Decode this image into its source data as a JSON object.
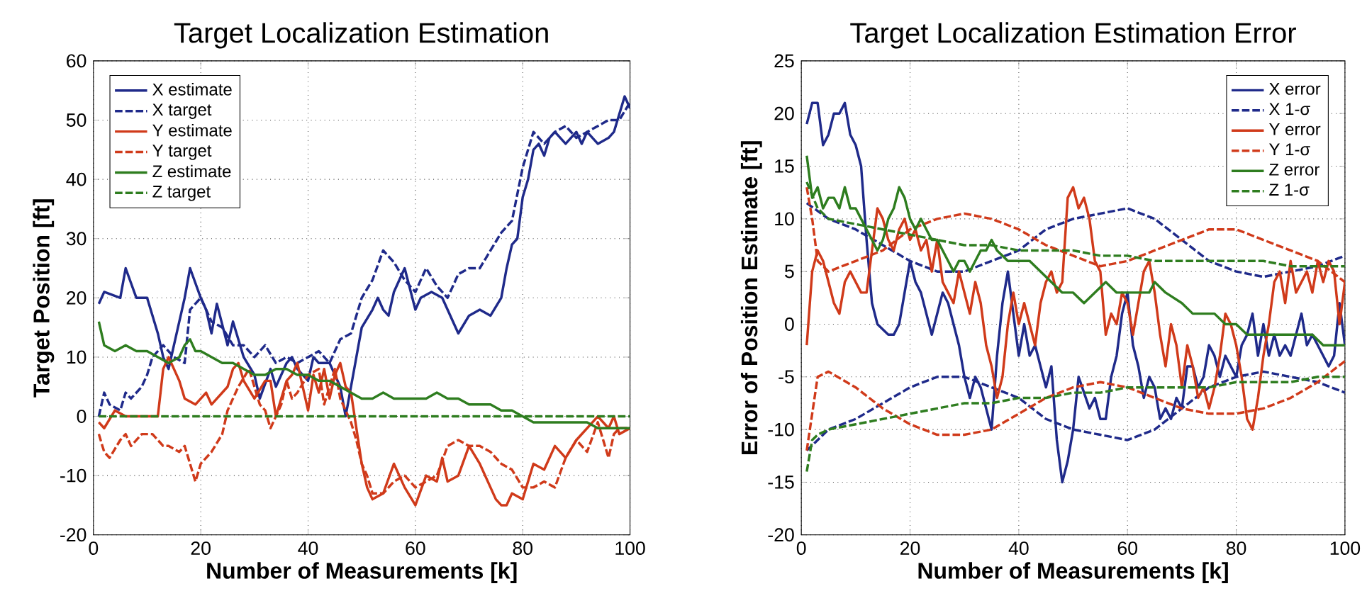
{
  "chart_data": [
    {
      "type": "line",
      "title": "Target Localization Estimation",
      "xlabel": "Number of Measurements [k]",
      "ylabel": "Target Position [ft]",
      "xlim": [
        0,
        100
      ],
      "ylim": [
        -20,
        60
      ],
      "xticks": [
        0,
        20,
        40,
        60,
        80,
        100
      ],
      "yticks": [
        -20,
        -10,
        0,
        10,
        20,
        30,
        40,
        50,
        60
      ],
      "grid": true,
      "legend": "top left",
      "marker": "none",
      "series": [
        {
          "name": "X estimate",
          "color": "#1f2a8a",
          "line_style": "solid",
          "x": [
            1,
            2,
            5,
            6,
            8,
            10,
            12,
            13,
            14,
            15,
            17,
            18,
            20,
            21,
            22,
            23,
            25,
            26,
            28,
            30,
            31,
            33,
            34,
            36,
            37,
            38,
            40,
            41,
            42,
            44,
            45,
            46,
            47,
            48,
            50,
            52,
            53,
            54,
            55,
            56,
            58,
            60,
            61,
            63,
            65,
            67,
            68,
            70,
            72,
            74,
            76,
            77,
            78,
            79,
            80,
            81,
            82,
            83,
            84,
            85,
            86,
            88,
            90,
            91,
            92,
            94,
            96,
            97,
            98,
            99,
            100
          ],
          "values": [
            19,
            21,
            20,
            25,
            20,
            20,
            14,
            10,
            8,
            12,
            20,
            25,
            20,
            18,
            14,
            19,
            12,
            16,
            10,
            7,
            3,
            8,
            5,
            9,
            10,
            8,
            6,
            10,
            9,
            9,
            7,
            5,
            0,
            5,
            15,
            18,
            20,
            18,
            17,
            21,
            25,
            18,
            20,
            21,
            20,
            16,
            14,
            17,
            18,
            17,
            20,
            25,
            29,
            30,
            37,
            40,
            45,
            46,
            44,
            47,
            48,
            46,
            48,
            46,
            48,
            46,
            47,
            48,
            51,
            54,
            52
          ]
        },
        {
          "name": "X target",
          "color": "#1f2a8a",
          "line_style": "dashed",
          "x": [
            1,
            2,
            3,
            5,
            6,
            7,
            9,
            10,
            11,
            13,
            15,
            17,
            18,
            20,
            22,
            24,
            26,
            28,
            30,
            32,
            34,
            36,
            38,
            40,
            42,
            44,
            46,
            48,
            50,
            52,
            54,
            56,
            58,
            60,
            62,
            64,
            66,
            68,
            70,
            72,
            74,
            76,
            78,
            80,
            82,
            84,
            86,
            88,
            90,
            92,
            94,
            96,
            98,
            100
          ],
          "values": [
            0,
            4,
            2,
            1,
            4,
            3,
            5,
            7,
            10,
            12,
            10,
            9,
            18,
            20,
            16,
            15,
            12,
            12,
            10,
            12,
            9,
            10,
            9,
            10,
            11,
            9,
            13,
            14,
            20,
            23,
            28,
            26,
            23,
            21,
            25,
            22,
            20,
            24,
            25,
            25,
            28,
            31,
            33,
            42,
            48,
            46,
            48,
            49,
            47,
            48,
            49,
            50,
            50,
            53
          ]
        },
        {
          "name": "Y estimate",
          "color": "#d03a1a",
          "line_style": "solid",
          "x": [
            1,
            2,
            4,
            6,
            8,
            10,
            12,
            13,
            14,
            16,
            17,
            19,
            20,
            21,
            22,
            24,
            25,
            26,
            27,
            28,
            30,
            32,
            33,
            34,
            36,
            37,
            38,
            39,
            40,
            41,
            42,
            43,
            44,
            45,
            46,
            47,
            48,
            49,
            50,
            51,
            52,
            54,
            56,
            58,
            60,
            62,
            64,
            65,
            66,
            68,
            70,
            72,
            74,
            75,
            76,
            77,
            78,
            80,
            82,
            84,
            86,
            88,
            90,
            92,
            94,
            96,
            97,
            98,
            100
          ],
          "values": [
            -1,
            -2,
            1,
            0,
            0,
            0,
            0,
            8,
            10,
            6,
            3,
            2,
            3,
            4,
            2,
            4,
            5,
            8,
            9,
            6,
            3,
            6,
            6,
            0,
            6,
            7,
            9,
            5,
            1,
            7,
            4,
            8,
            3,
            7,
            9,
            5,
            4,
            -2,
            -8,
            -12,
            -14,
            -13,
            -8,
            -12,
            -15,
            -10,
            -11,
            -7,
            -11,
            -10,
            -5,
            -8,
            -12,
            -14,
            -15,
            -15,
            -13,
            -14,
            -8,
            -9,
            -5,
            -7,
            -4,
            -2,
            0,
            -2,
            0,
            -3,
            -2
          ]
        },
        {
          "name": "Y target",
          "color": "#d03a1a",
          "line_style": "dashed",
          "x": [
            1,
            2,
            3,
            5,
            6,
            7,
            9,
            11,
            12,
            13,
            14,
            16,
            17,
            18,
            19,
            20,
            22,
            24,
            25,
            27,
            29,
            31,
            32,
            33,
            35,
            36,
            37,
            38,
            40,
            42,
            43,
            44,
            45,
            46,
            48,
            49,
            50,
            51,
            52,
            54,
            56,
            58,
            60,
            62,
            64,
            66,
            68,
            70,
            72,
            74,
            76,
            78,
            80,
            82,
            84,
            86,
            88,
            90,
            92,
            94,
            96,
            97,
            98,
            100
          ],
          "values": [
            -3,
            -6,
            -7,
            -4,
            -3,
            -5,
            -3,
            -3,
            -4,
            -5,
            -5,
            -6,
            -5,
            -8,
            -11,
            -8,
            -6,
            -3,
            1,
            5,
            8,
            2,
            1,
            -2,
            2,
            6,
            3,
            4,
            7,
            8,
            2,
            5,
            8,
            3,
            -1,
            -4,
            -8,
            -10,
            -13,
            -13,
            -11,
            -10,
            -12,
            -11,
            -10,
            -5,
            -4,
            -5,
            -5,
            -6,
            -8,
            -9,
            -12,
            -12,
            -11,
            -12,
            -7,
            -4,
            -6,
            -1,
            -7,
            -3,
            -2,
            -2
          ]
        },
        {
          "name": "Z estimate",
          "color": "#2e7d1f",
          "line_style": "solid",
          "x": [
            1,
            2,
            4,
            6,
            8,
            10,
            12,
            14,
            16,
            17,
            18,
            19,
            20,
            22,
            24,
            26,
            28,
            30,
            32,
            34,
            36,
            38,
            40,
            42,
            44,
            46,
            48,
            50,
            52,
            54,
            56,
            58,
            60,
            62,
            64,
            66,
            68,
            70,
            72,
            74,
            76,
            78,
            80,
            82,
            84,
            86,
            88,
            90,
            92,
            94,
            96,
            98,
            100
          ],
          "values": [
            16,
            12,
            11,
            12,
            11,
            11,
            10,
            9,
            10,
            12,
            13,
            11,
            11,
            10,
            9,
            9,
            8,
            7,
            7,
            8,
            8,
            7,
            7,
            6,
            6,
            5,
            4,
            3,
            3,
            4,
            3,
            3,
            3,
            3,
            4,
            3,
            3,
            2,
            2,
            2,
            1,
            1,
            0,
            -1,
            -1,
            -1,
            -1,
            -1,
            -1,
            -2,
            -2,
            -2,
            -2
          ]
        },
        {
          "name": "Z target",
          "color": "#2e7d1f",
          "line_style": "dashed",
          "x": [
            1,
            100
          ],
          "values": [
            0,
            0
          ]
        }
      ]
    },
    {
      "type": "line",
      "title": "Target Localization Estimation Error",
      "xlabel": "Number of Measurements [k]",
      "ylabel": "Error of Position Estimate [ft]",
      "xlim": [
        0,
        100
      ],
      "ylim": [
        -20,
        25
      ],
      "xticks": [
        0,
        20,
        40,
        60,
        80,
        100
      ],
      "yticks": [
        -20,
        -15,
        -10,
        -5,
        0,
        5,
        10,
        15,
        20,
        25
      ],
      "grid": true,
      "legend": "top right",
      "marker": "none",
      "series": [
        {
          "name": "X error",
          "color": "#1f2a8a",
          "line_style": "solid",
          "x": [
            1,
            2,
            3,
            4,
            5,
            6,
            7,
            8,
            9,
            10,
            11,
            12,
            13,
            14,
            16,
            17,
            18,
            19,
            20,
            21,
            22,
            23,
            24,
            25,
            26,
            27,
            28,
            29,
            30,
            31,
            32,
            33,
            34,
            35,
            36,
            37,
            38,
            39,
            40,
            41,
            42,
            43,
            44,
            45,
            46,
            47,
            48,
            49,
            50,
            51,
            53,
            54,
            55,
            56,
            57,
            58,
            59,
            60,
            61,
            62,
            63,
            64,
            65,
            66,
            67,
            68,
            69,
            70,
            71,
            72,
            73,
            74,
            75,
            76,
            77,
            78,
            79,
            80,
            81,
            82,
            83,
            84,
            85,
            86,
            87,
            88,
            89,
            90,
            91,
            92,
            93,
            94,
            95,
            96,
            97,
            98,
            99,
            100
          ],
          "values": [
            19,
            21,
            21,
            17,
            18,
            20,
            20,
            21,
            18,
            17,
            15,
            8,
            2,
            0,
            -1,
            -1,
            0,
            3,
            6,
            4,
            3,
            1,
            -1,
            1,
            3,
            2,
            0,
            -2,
            -5,
            -7,
            -5,
            -6,
            -8,
            -10,
            -3,
            2,
            5,
            1,
            -3,
            0,
            -3,
            -2,
            -4,
            -6,
            -4,
            -11,
            -15,
            -13,
            -10,
            -5,
            -8,
            -7,
            -9,
            -9,
            -5,
            -3,
            1,
            3,
            -2,
            -4,
            -7,
            -5,
            -6,
            -9,
            -8,
            -9,
            -7,
            -8,
            -4,
            -4,
            -6,
            -5,
            -2,
            -3,
            -5,
            -3,
            -4,
            -5,
            -2,
            -1,
            1,
            -3,
            0,
            -3,
            -1,
            -3,
            -2,
            -3,
            -1,
            1,
            -2,
            -1,
            -2,
            -3,
            -4,
            -3,
            2,
            -2
          ]
        },
        {
          "name": "X 1-σ",
          "color": "#1f2a8a",
          "line_style": "dashed",
          "x": [
            1,
            5,
            10,
            15,
            20,
            25,
            30,
            35,
            40,
            45,
            50,
            55,
            60,
            65,
            70,
            75,
            80,
            85,
            90,
            95,
            100
          ],
          "values": [
            11.5,
            10,
            9,
            7.5,
            6,
            5,
            5,
            6,
            7,
            9,
            10,
            10.5,
            11,
            10,
            8,
            6,
            5,
            4.5,
            5,
            5.5,
            6.5
          ]
        },
        {
          "color": "#1f2a8a",
          "line_style": "dashed",
          "x": [
            1,
            5,
            10,
            15,
            20,
            25,
            30,
            35,
            40,
            45,
            50,
            55,
            60,
            65,
            70,
            75,
            80,
            85,
            90,
            95,
            100
          ],
          "values": [
            -12,
            -10,
            -9,
            -7.5,
            -6,
            -5,
            -5,
            -6,
            -7,
            -9,
            -10,
            -10.5,
            -11,
            -10,
            -8,
            -6,
            -5,
            -4.5,
            -5,
            -5.5,
            -6.5
          ]
        },
        {
          "name": "Y error",
          "color": "#d03a1a",
          "line_style": "solid",
          "x": [
            1,
            2,
            3,
            4,
            5,
            6,
            7,
            8,
            9,
            10,
            11,
            12,
            13,
            14,
            15,
            16,
            17,
            18,
            19,
            20,
            21,
            22,
            23,
            24,
            25,
            26,
            27,
            28,
            29,
            30,
            31,
            32,
            33,
            34,
            35,
            36,
            37,
            38,
            39,
            40,
            41,
            42,
            43,
            44,
            45,
            46,
            47,
            48,
            49,
            50,
            51,
            52,
            53,
            54,
            55,
            56,
            57,
            58,
            59,
            60,
            61,
            62,
            63,
            64,
            65,
            66,
            67,
            68,
            69,
            70,
            71,
            72,
            73,
            74,
            75,
            76,
            77,
            78,
            79,
            80,
            81,
            82,
            83,
            84,
            85,
            86,
            87,
            88,
            89,
            90,
            91,
            92,
            93,
            94,
            95,
            96,
            97,
            98,
            99,
            100
          ],
          "values": [
            -2,
            5,
            7,
            6,
            4,
            2,
            1,
            4,
            5,
            4,
            3,
            3,
            7,
            11,
            10,
            8,
            7,
            9,
            10,
            8,
            9,
            7,
            8,
            5,
            8,
            4,
            3,
            2,
            5,
            3,
            1,
            4,
            2,
            -2,
            -4,
            -7,
            -5,
            0,
            3,
            0,
            2,
            0,
            -2,
            2,
            4,
            5,
            3,
            4,
            12,
            13,
            11,
            12,
            10,
            6,
            5,
            -1,
            1,
            0,
            3,
            2,
            -1,
            2,
            5,
            6,
            3,
            -1,
            -4,
            0,
            -2,
            -6,
            -2,
            -4,
            -7,
            -6,
            -8,
            -6,
            -3,
            1,
            0,
            -2,
            -5,
            -9,
            -10,
            -7,
            -3,
            0,
            4,
            5,
            2,
            6,
            3,
            4,
            5,
            3,
            6,
            4,
            6,
            5,
            0,
            4
          ]
        },
        {
          "name": "Y 1-σ",
          "color": "#d03a1a",
          "line_style": "dashed",
          "x": [
            1,
            2,
            3,
            5,
            10,
            15,
            20,
            25,
            30,
            35,
            40,
            45,
            50,
            55,
            60,
            65,
            70,
            75,
            80,
            85,
            90,
            95,
            100
          ],
          "values": [
            13,
            10,
            6,
            5,
            6,
            7,
            9,
            10,
            10.5,
            10,
            9,
            7.5,
            6.5,
            5.5,
            6,
            7,
            8,
            9,
            9,
            8,
            7,
            6,
            4
          ]
        },
        {
          "color": "#d03a1a",
          "line_style": "dashed",
          "x": [
            1,
            3,
            5,
            10,
            15,
            20,
            25,
            30,
            35,
            40,
            45,
            50,
            55,
            60,
            65,
            70,
            75,
            80,
            85,
            90,
            95,
            100
          ],
          "values": [
            -12,
            -5,
            -4.5,
            -6,
            -8,
            -9.5,
            -10.5,
            -10.5,
            -10,
            -8.5,
            -7,
            -6,
            -5.5,
            -6,
            -7,
            -8,
            -8.5,
            -8.5,
            -8,
            -7,
            -5.5,
            -3.5
          ]
        },
        {
          "name": "Z error",
          "color": "#2e7d1f",
          "line_style": "solid",
          "x": [
            1,
            2,
            3,
            4,
            5,
            6,
            7,
            8,
            9,
            10,
            11,
            12,
            13,
            14,
            15,
            16,
            17,
            18,
            19,
            20,
            21,
            22,
            23,
            24,
            25,
            26,
            27,
            28,
            29,
            30,
            31,
            32,
            33,
            34,
            35,
            36,
            38,
            40,
            42,
            44,
            46,
            48,
            50,
            52,
            54,
            56,
            58,
            60,
            62,
            64,
            65,
            67,
            70,
            72,
            74,
            76,
            78,
            80,
            82,
            84,
            86,
            88,
            90,
            92,
            94,
            96,
            98,
            100
          ],
          "values": [
            16,
            12,
            13,
            11,
            12,
            12,
            11,
            13,
            11,
            11,
            10,
            9,
            8,
            7,
            8,
            10,
            11,
            13,
            12,
            10,
            9,
            10,
            9,
            8,
            8,
            7,
            6,
            5,
            6,
            6,
            5,
            6,
            7,
            7,
            8,
            7,
            6,
            6,
            6,
            5,
            4,
            3,
            3,
            2,
            3,
            4,
            3,
            3,
            3,
            3,
            4,
            3,
            2,
            1,
            1,
            1,
            0,
            0,
            -1,
            -1,
            -1,
            -1,
            -1,
            -1,
            -1,
            -2,
            -2,
            -2
          ]
        },
        {
          "name": "Z 1-σ",
          "color": "#2e7d1f",
          "line_style": "dashed",
          "x": [
            1,
            3,
            5,
            10,
            15,
            20,
            25,
            30,
            35,
            40,
            45,
            50,
            55,
            60,
            65,
            70,
            75,
            80,
            85,
            90,
            95,
            100
          ],
          "values": [
            13.5,
            11,
            10,
            9.5,
            9,
            8.5,
            8,
            7.5,
            7.5,
            7,
            7,
            7,
            6.5,
            6.5,
            6,
            6,
            6,
            6,
            6,
            5.5,
            5.5,
            5.5
          ]
        },
        {
          "color": "#2e7d1f",
          "line_style": "dashed",
          "x": [
            1,
            2,
            3,
            5,
            10,
            15,
            20,
            25,
            30,
            35,
            40,
            45,
            50,
            55,
            60,
            65,
            70,
            75,
            80,
            85,
            90,
            95,
            100
          ],
          "values": [
            -14,
            -11,
            -10.5,
            -10,
            -9.5,
            -9,
            -8.5,
            -8,
            -7.5,
            -7.5,
            -7,
            -7,
            -6.5,
            -6.5,
            -6,
            -6,
            -6,
            -6,
            -5.5,
            -5.5,
            -5.5,
            -5,
            -5
          ]
        }
      ]
    }
  ]
}
